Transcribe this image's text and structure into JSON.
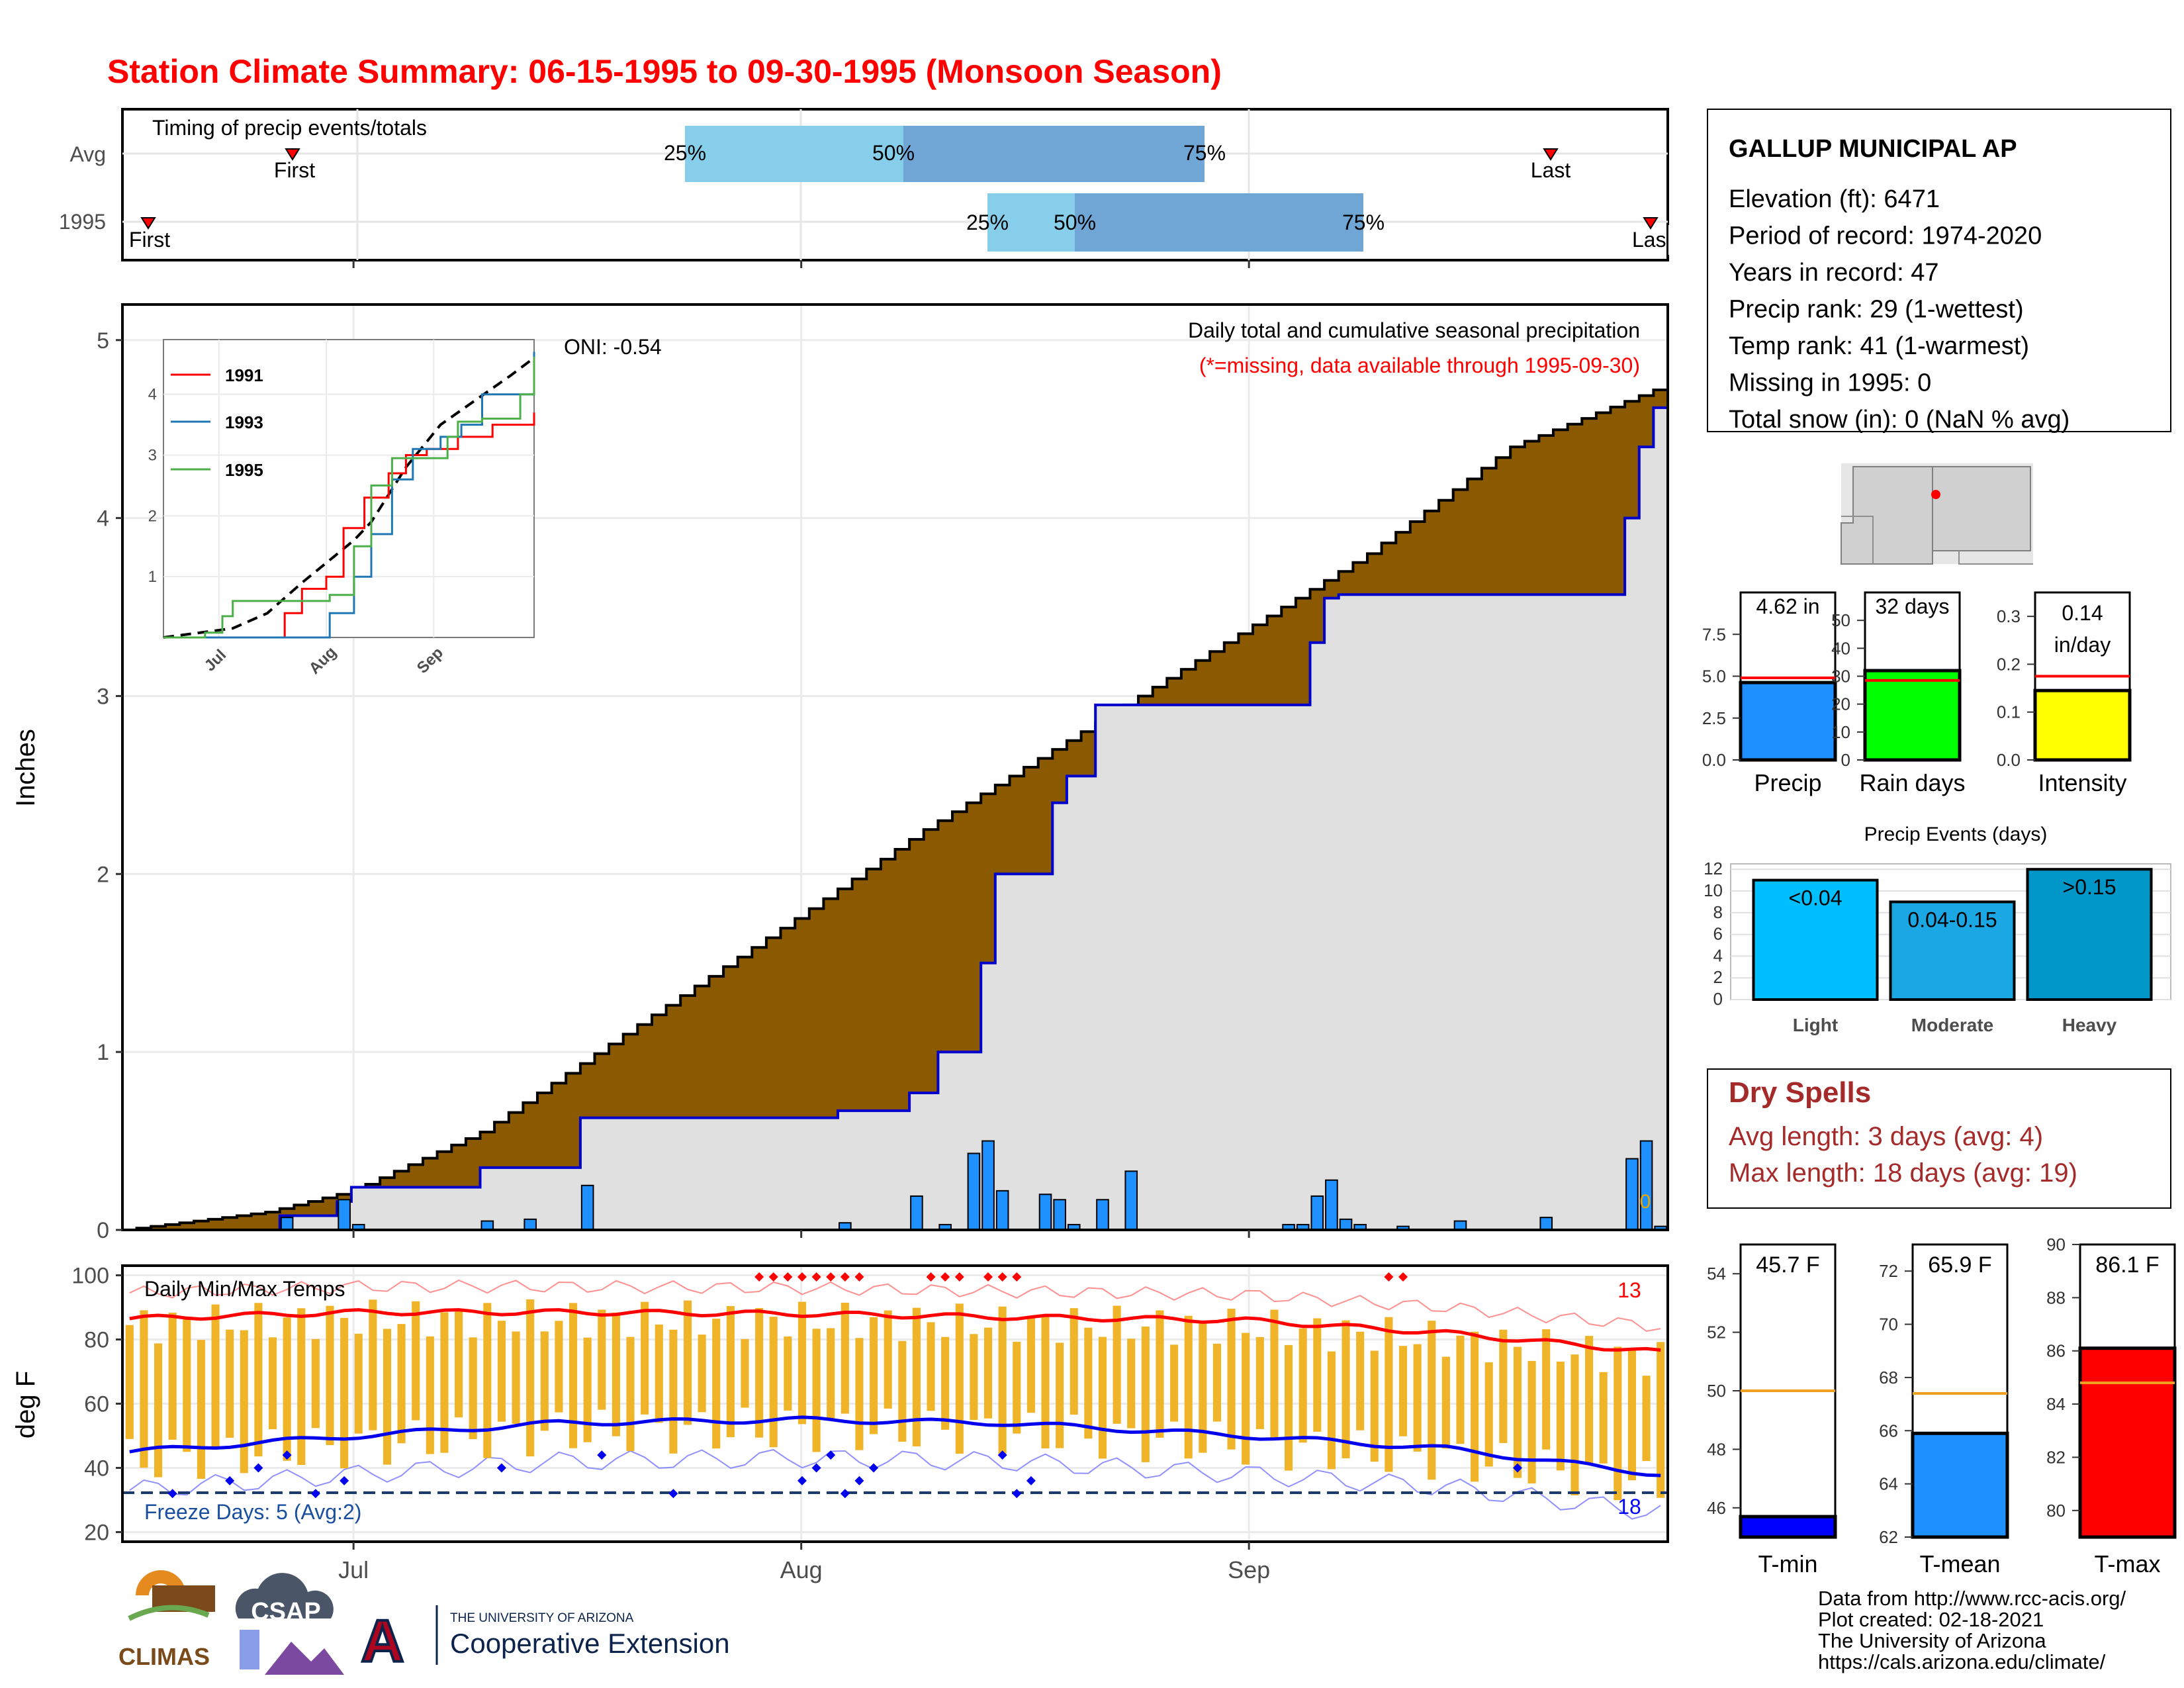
{
  "title": "Station Climate Summary: 06-15-1995 to 09-30-1995 (Monsoon Season)",
  "colors": {
    "title": "#ff0000",
    "accumulated": "#8b5a00",
    "avg_line": "#0000cc",
    "bars": "#1e90ff",
    "area": "#e0e0e0",
    "box_light": "#87ceeb",
    "box_dark": "#6fa6d6",
    "max_temp": "#ff0000",
    "min_temp": "#0000ff",
    "range_bar": "#f0b429",
    "dry_spells": "#a52a2a"
  },
  "timing": {
    "label": "Timing of precip events/totals",
    "rows": [
      {
        "name": "Avg",
        "first": "First",
        "last": "Last",
        "p25": "25%",
        "p50": "50%",
        "p75": "75%",
        "first_day": "06-27",
        "last_day": "09-25",
        "q25_day": "07-22",
        "q50_day": "08-03",
        "q75_day": "08-21"
      },
      {
        "name": "1995",
        "first": "First",
        "last": "Last",
        "p25": "25%",
        "p50": "50%",
        "p75": "75%",
        "first_day": "06-16",
        "last_day": "09-30",
        "q25_day": "08-14",
        "q50_day": "08-19",
        "q75_day": "09-04"
      }
    ]
  },
  "main": {
    "ylabel": "Inches",
    "yticks": [
      "0",
      "1",
      "2",
      "3",
      "4",
      "5"
    ],
    "annotation_title": "Daily total and cumulative seasonal precipitation",
    "annotation_missing": "(*=missing, data available through 1995-09-30)",
    "oni": "ONI: -0.54",
    "zero_label": "0",
    "x_tick_labels": [
      "Jul",
      "Aug",
      "Sep"
    ]
  },
  "inset": {
    "legend": [
      "1991",
      "1993",
      "1995"
    ],
    "yticks": [
      "1",
      "2",
      "3",
      "4"
    ],
    "xticks": [
      "Jul",
      "Aug",
      "Sep"
    ]
  },
  "temps": {
    "ylabel": "deg F",
    "title": "Daily Min/Max Temps",
    "yticks": [
      "20",
      "40",
      "60",
      "80",
      "100"
    ],
    "freeze": "Freeze Days: 5 (Avg:2)",
    "count_hot": "13",
    "count_cold": "18",
    "x_tick_labels": [
      "Jul",
      "Aug",
      "Sep"
    ]
  },
  "station": {
    "name": "GALLUP MUNICIPAL AP",
    "lines": [
      "Elevation (ft): 6471",
      "Period of record: 1974-2020",
      "Years in record: 47",
      "Precip rank: 29 (1-wettest)",
      "Temp rank: 41 (1-warmest)",
      "Missing in 1995: 0",
      "Total snow (in): 0 (NaN % avg)"
    ]
  },
  "small_bars": [
    {
      "label": "Precip",
      "value_text": "4.62 in",
      "value": 4.62,
      "avg": 4.9,
      "ymax": 10,
      "ticks": [
        "0.0",
        "2.5",
        "5.0",
        "7.5"
      ],
      "color": "#1e90ff"
    },
    {
      "label": "Rain days",
      "value_text": "32 days",
      "value": 32,
      "avg": 28.5,
      "ymax": 60,
      "ticks": [
        "0",
        "10",
        "20",
        "30",
        "40",
        "50"
      ],
      "color": "#00ff00"
    },
    {
      "label": "Intensity",
      "value_text": "0.14 in/day",
      "value_line1": "0.14",
      "value_line2": "in/day",
      "value": 0.145,
      "avg": 0.175,
      "ymax": 0.35,
      "ticks": [
        "0.0",
        "0.1",
        "0.2",
        "0.3"
      ],
      "color": "#ffff00"
    }
  ],
  "events": {
    "title": "Precip Events (days)",
    "ticks": [
      "0",
      "2",
      "4",
      "6",
      "8",
      "10",
      "12"
    ],
    "categories": [
      {
        "label": "Light",
        "bar_text": "<0.04",
        "value": 11,
        "color": "#00bfff"
      },
      {
        "label": "Moderate",
        "bar_text": "0.04-0.15",
        "value": 9,
        "color": "#1aa7e3"
      },
      {
        "label": "Heavy",
        "bar_text": ">0.15",
        "value": 12,
        "color": "#0096c7"
      }
    ]
  },
  "dry": {
    "title": "Dry Spells",
    "line1": "Avg length: 3 days (avg: 4)",
    "line2": "Max length: 18 days (avg: 19)"
  },
  "temp_bars": [
    {
      "label": "T-min",
      "value_text": "45.7 F",
      "value": 45.7,
      "avg": 50.0,
      "ymin": 45,
      "ymax": 55,
      "ticks": [
        "46",
        "48",
        "50",
        "52",
        "54"
      ],
      "color": "#0000ff"
    },
    {
      "label": "T-mean",
      "value_text": "65.9 F",
      "value": 65.9,
      "avg": 67.4,
      "ymin": 62,
      "ymax": 73,
      "ticks": [
        "62",
        "64",
        "66",
        "68",
        "70",
        "72"
      ],
      "color": "#1e90ff"
    },
    {
      "label": "T-max",
      "value_text": "86.1 F",
      "value": 86.1,
      "avg": 84.8,
      "ymin": 79,
      "ymax": 90,
      "ticks": [
        "80",
        "82",
        "84",
        "86",
        "88",
        "90"
      ],
      "color": "#ff0000"
    }
  ],
  "footer": {
    "lines": [
      "Data from http://www.rcc-acis.org/",
      "Plot created: 02-18-2021",
      "The University of Arizona",
      "https://cals.arizona.edu/climate/"
    ],
    "climas": "CLIMAS",
    "csap": "CSAP",
    "ua_small": "THE UNIVERSITY OF ARIZONA",
    "ua_big": "Cooperative Extension"
  },
  "chart_data": [
    {
      "type": "area",
      "title": "Daily total and cumulative seasonal precipitation",
      "ylabel": "Inches",
      "ylim": [
        0,
        5.2
      ],
      "x_range": [
        "1995-06-15",
        "1995-09-30"
      ],
      "series": [
        {
          "name": "1995",
          "x": [
            "06-15",
            "06-26",
            "06-30",
            "07-01",
            "07-10",
            "07-17",
            "08-04",
            "08-09",
            "08-11",
            "08-14",
            "08-15",
            "08-19",
            "08-20",
            "08-22",
            "08-24",
            "09-06",
            "09-07",
            "09-08",
            "09-28",
            "09-29",
            "09-30"
          ],
          "values": [
            0.0,
            0.08,
            0.16,
            0.24,
            0.35,
            0.63,
            0.67,
            0.77,
            1.0,
            1.5,
            2.0,
            2.4,
            2.55,
            2.95,
            2.95,
            3.3,
            3.55,
            3.57,
            4.0,
            4.4,
            4.62
          ]
        },
        {
          "name": "avg",
          "x": [
            "06-15",
            "06-25",
            "07-01",
            "07-10",
            "07-20",
            "08-01",
            "08-10",
            "08-20",
            "09-01",
            "09-10",
            "09-20",
            "09-30"
          ],
          "values": [
            0.0,
            0.1,
            0.22,
            0.55,
            1.1,
            1.75,
            2.25,
            2.75,
            3.35,
            3.8,
            4.4,
            4.72
          ]
        },
        {
          "name": "daily",
          "x": [
            "06-26",
            "06-30",
            "07-01",
            "07-10",
            "07-13",
            "07-17",
            "08-04",
            "08-09",
            "08-11",
            "08-13",
            "08-14",
            "08-15",
            "08-18",
            "08-19",
            "08-20",
            "08-22",
            "08-24",
            "09-04",
            "09-05",
            "09-06",
            "09-07",
            "09-08",
            "09-09",
            "09-12",
            "09-16",
            "09-22",
            "09-28",
            "09-29",
            "09-30"
          ],
          "values": [
            0.07,
            0.17,
            0.03,
            0.05,
            0.06,
            0.25,
            0.04,
            0.19,
            0.03,
            0.43,
            0.5,
            0.22,
            0.2,
            0.17,
            0.03,
            0.17,
            0.33,
            0.03,
            0.03,
            0.19,
            0.28,
            0.06,
            0.03,
            0.02,
            0.05,
            0.07,
            0.4,
            0.5,
            0.02
          ]
        }
      ]
    },
    {
      "type": "line",
      "title": "Daily Min/Max Temps",
      "ylabel": "deg F",
      "ylim": [
        17,
        103
      ],
      "series": [
        {
          "name": "Tmax avg",
          "x": [
            "06-15",
            "07-01",
            "07-15",
            "08-01",
            "08-15",
            "09-01",
            "09-15",
            "09-30"
          ],
          "values": [
            86.5,
            88.5,
            88.5,
            88.0,
            87.0,
            86.0,
            82.0,
            76.0
          ]
        },
        {
          "name": "Tmin avg",
          "x": [
            "06-15",
            "07-01",
            "07-15",
            "08-01",
            "08-15",
            "09-01",
            "09-15",
            "09-30"
          ],
          "values": [
            45.0,
            50.0,
            54.0,
            55.0,
            54.0,
            50.0,
            46.0,
            38.0
          ]
        }
      ]
    },
    {
      "type": "bar",
      "title": "Precip Events (days)",
      "categories": [
        "Light",
        "Moderate",
        "Heavy"
      ],
      "values": [
        11,
        9,
        12
      ]
    }
  ]
}
